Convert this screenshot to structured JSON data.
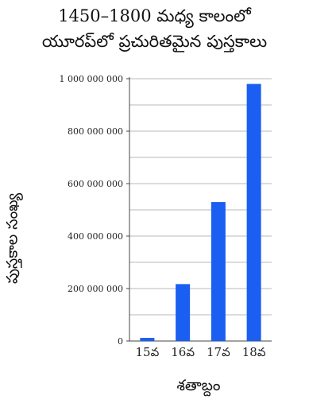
{
  "chart_data": {
    "type": "bar",
    "title": "1450–1800 మధ్య కాలంలో",
    "subtitle": "యూరప్‌లో ప్రచురితమైన పుస్తకాలు",
    "xlabel": "శతాబ్దం",
    "ylabel": "పుస్తకాల సంఖ్య",
    "categories": [
      "15వ",
      "16వ",
      "17వ",
      "18వ"
    ],
    "values": [
      12000000,
      217000000,
      530000000,
      980000000
    ],
    "ylim": [
      0,
      1000000000
    ],
    "y_ticks": [
      {
        "value": 0,
        "label": "0"
      },
      {
        "value": 200000000,
        "label": "200 000 000"
      },
      {
        "value": 400000000,
        "label": "400 000 000"
      },
      {
        "value": 600000000,
        "label": "600 000 000"
      },
      {
        "value": 800000000,
        "label": "800 000 000"
      },
      {
        "value": 1000000000,
        "label": "1 000 000 000"
      }
    ],
    "minor_gridline_step": 100000000,
    "grid": true,
    "bar_color": "#1a5ef2"
  }
}
